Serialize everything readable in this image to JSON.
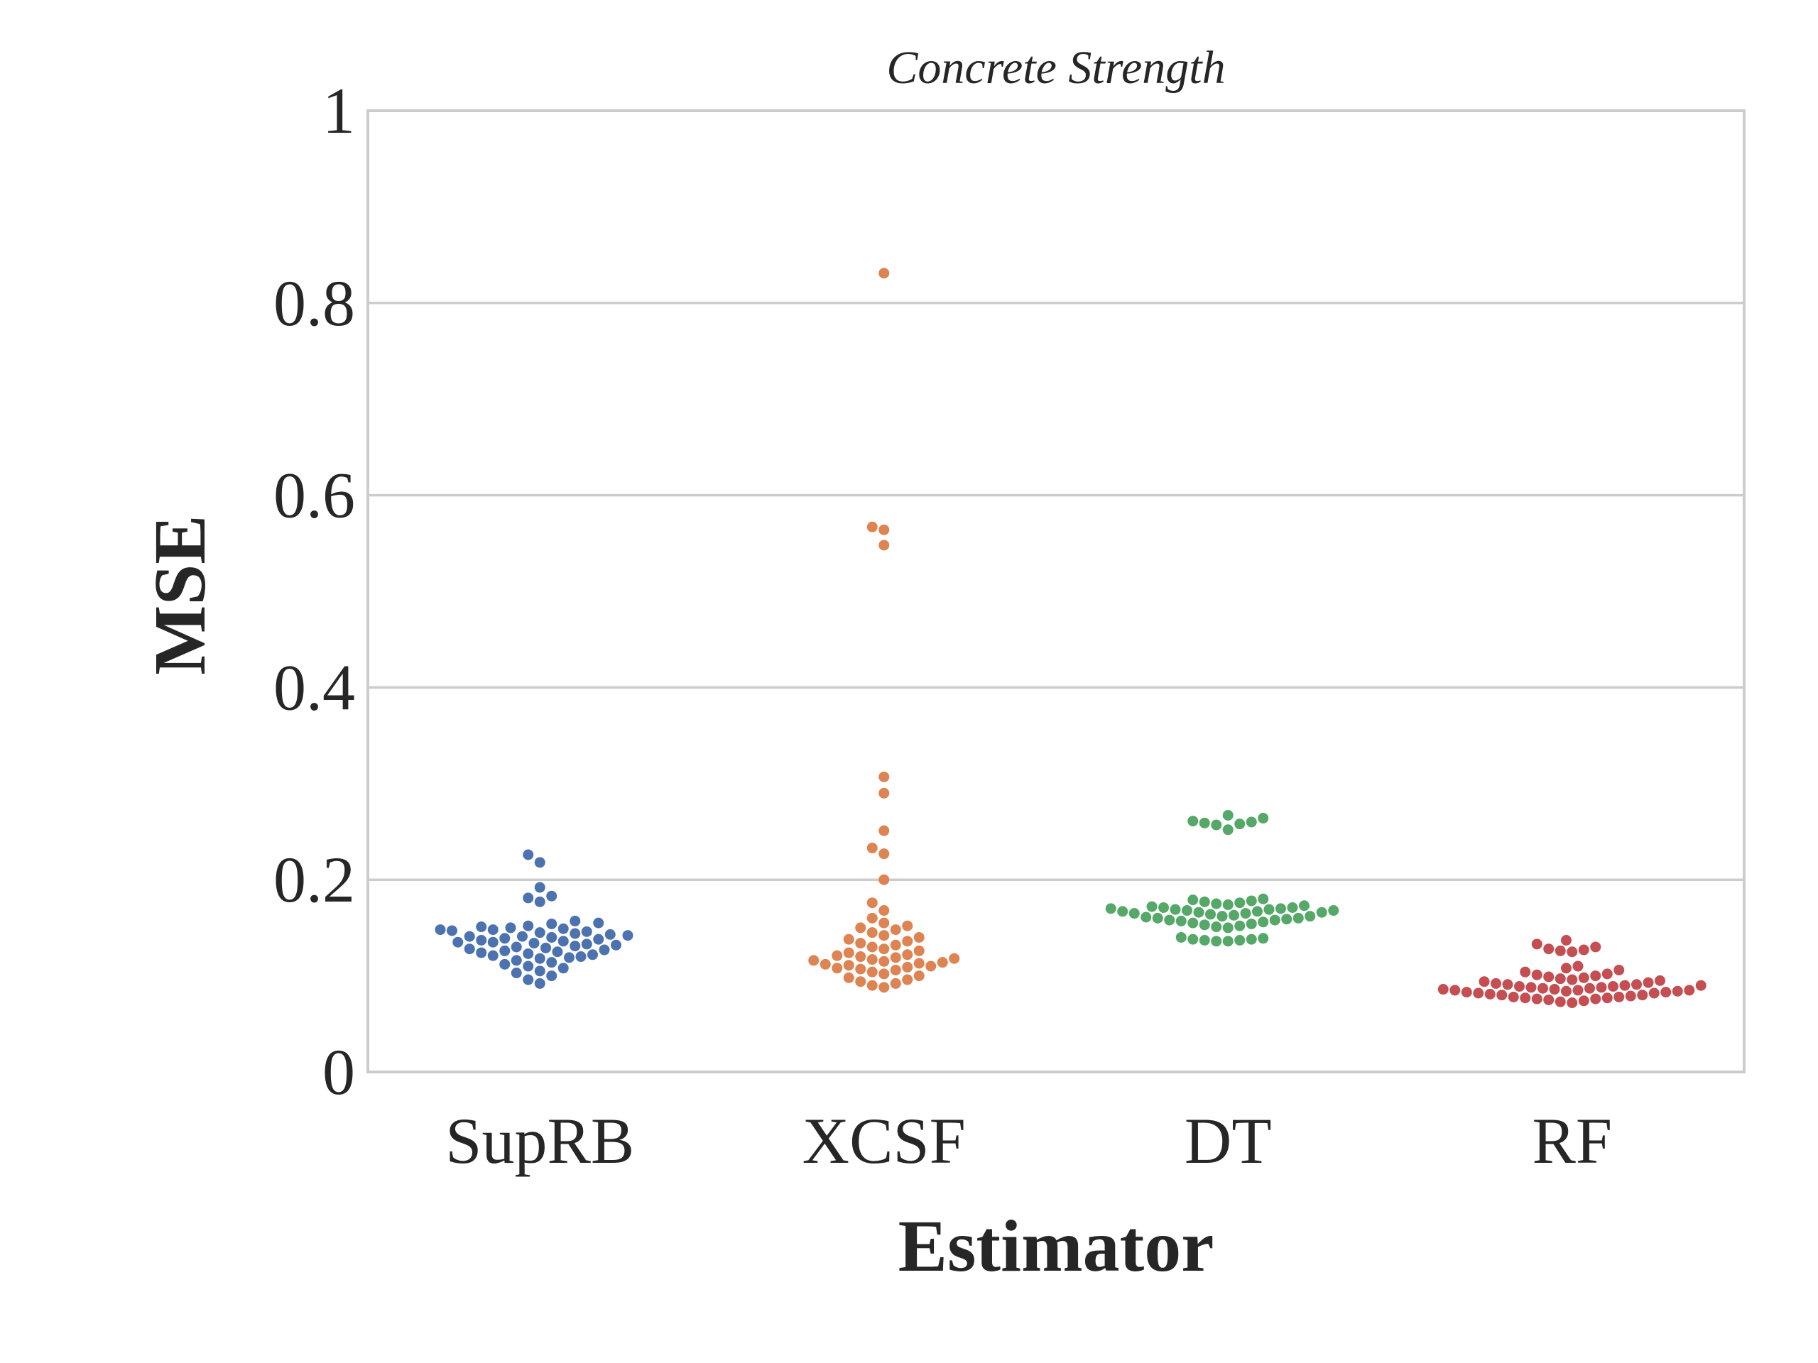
{
  "chart_data": {
    "type": "scatter",
    "subtype": "swarm",
    "title": "Concrete Strength",
    "xlabel": "Estimator",
    "ylabel": "MSE",
    "ylim": [
      0,
      1
    ],
    "yticks": [
      0,
      0.2,
      0.4,
      0.6,
      0.8,
      1
    ],
    "ytick_labels": [
      "0",
      "0.2",
      "0.4",
      "0.6",
      "0.8",
      "1"
    ],
    "grid": "horizontal",
    "categories": [
      "SupRB",
      "XCSF",
      "DT",
      "RF"
    ],
    "series": [
      {
        "color": "#4c72b0",
        "values": [
          0.226,
          0.218,
          0.192,
          0.183,
          0.181,
          0.177,
          0.157,
          0.155,
          0.154,
          0.152,
          0.151,
          0.15,
          0.149,
          0.148,
          0.148,
          0.147,
          0.146,
          0.145,
          0.144,
          0.143,
          0.142,
          0.141,
          0.141,
          0.14,
          0.139,
          0.138,
          0.137,
          0.136,
          0.135,
          0.135,
          0.134,
          0.133,
          0.132,
          0.131,
          0.13,
          0.129,
          0.128,
          0.127,
          0.126,
          0.125,
          0.124,
          0.123,
          0.122,
          0.121,
          0.12,
          0.119,
          0.118,
          0.116,
          0.114,
          0.112,
          0.11,
          0.108,
          0.105,
          0.103,
          0.1,
          0.096,
          0.092
        ]
      },
      {
        "color": "#dd8452",
        "values": [
          0.831,
          0.567,
          0.564,
          0.548,
          0.307,
          0.29,
          0.251,
          0.233,
          0.227,
          0.2,
          0.176,
          0.168,
          0.16,
          0.155,
          0.152,
          0.15,
          0.148,
          0.145,
          0.142,
          0.14,
          0.138,
          0.136,
          0.134,
          0.132,
          0.13,
          0.128,
          0.126,
          0.124,
          0.122,
          0.121,
          0.12,
          0.119,
          0.118,
          0.117,
          0.116,
          0.115,
          0.114,
          0.113,
          0.112,
          0.111,
          0.11,
          0.109,
          0.108,
          0.107,
          0.106,
          0.104,
          0.102,
          0.1,
          0.098,
          0.096,
          0.094,
          0.092,
          0.09,
          0.088
        ]
      },
      {
        "color": "#55a868",
        "values": [
          0.267,
          0.264,
          0.261,
          0.26,
          0.259,
          0.258,
          0.257,
          0.252,
          0.18,
          0.179,
          0.178,
          0.177,
          0.176,
          0.175,
          0.174,
          0.173,
          0.172,
          0.171,
          0.171,
          0.17,
          0.17,
          0.169,
          0.169,
          0.168,
          0.168,
          0.167,
          0.167,
          0.166,
          0.166,
          0.165,
          0.165,
          0.164,
          0.163,
          0.162,
          0.162,
          0.161,
          0.16,
          0.16,
          0.159,
          0.158,
          0.158,
          0.157,
          0.156,
          0.155,
          0.154,
          0.153,
          0.152,
          0.151,
          0.15,
          0.14,
          0.139,
          0.138,
          0.138,
          0.137,
          0.137,
          0.136,
          0.136
        ]
      },
      {
        "color": "#c44e52",
        "values": [
          0.137,
          0.133,
          0.13,
          0.128,
          0.127,
          0.126,
          0.125,
          0.11,
          0.108,
          0.106,
          0.104,
          0.102,
          0.101,
          0.1,
          0.099,
          0.098,
          0.097,
          0.096,
          0.095,
          0.094,
          0.093,
          0.092,
          0.091,
          0.091,
          0.09,
          0.09,
          0.089,
          0.089,
          0.088,
          0.088,
          0.087,
          0.087,
          0.086,
          0.086,
          0.085,
          0.085,
          0.085,
          0.084,
          0.084,
          0.083,
          0.083,
          0.082,
          0.082,
          0.081,
          0.08,
          0.08,
          0.079,
          0.078,
          0.078,
          0.077,
          0.077,
          0.076,
          0.076,
          0.075,
          0.074,
          0.073,
          0.072
        ]
      }
    ]
  }
}
